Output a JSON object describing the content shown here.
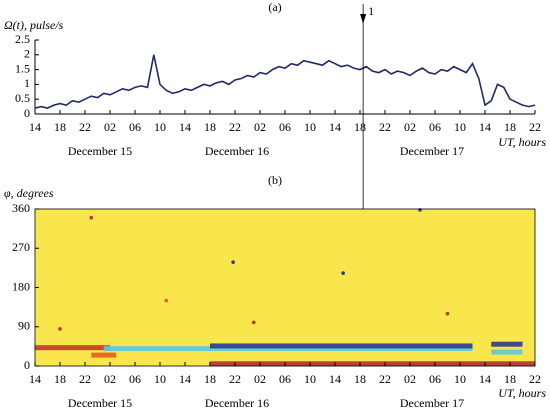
{
  "chart_data": [
    {
      "type": "line",
      "title": "(a)",
      "ylabel": "Ω(t), pulse/s",
      "xlabel": "UT, hours",
      "date_labels": [
        "December 15",
        "December 16",
        "December 17"
      ],
      "x": [
        0,
        1,
        2,
        3,
        4,
        5,
        6,
        7,
        8,
        9,
        10,
        11,
        12,
        13,
        14,
        15,
        16,
        17,
        18,
        19,
        20,
        21,
        22,
        23,
        24,
        25,
        26,
        27,
        28,
        29,
        30,
        31,
        32,
        33,
        34,
        35,
        36,
        37,
        38,
        39,
        40,
        41,
        42,
        43,
        44,
        45,
        46,
        47,
        48,
        49,
        50,
        51,
        52,
        53,
        54,
        55,
        56,
        57,
        58,
        59,
        60,
        61,
        62,
        63,
        64,
        65,
        66,
        67,
        68,
        69,
        70,
        71,
        72,
        73,
        74,
        75,
        76,
        77,
        78,
        79,
        80
      ],
      "series": [
        {
          "name": "Ω(t)",
          "color": "#1f2a6b",
          "values": [
            0.2,
            0.25,
            0.2,
            0.3,
            0.35,
            0.3,
            0.45,
            0.4,
            0.5,
            0.6,
            0.55,
            0.7,
            0.65,
            0.75,
            0.85,
            0.8,
            0.9,
            0.95,
            0.9,
            2.0,
            1.0,
            0.8,
            0.7,
            0.75,
            0.85,
            0.8,
            0.9,
            1.0,
            0.95,
            1.05,
            1.1,
            1.0,
            1.15,
            1.2,
            1.3,
            1.25,
            1.4,
            1.35,
            1.5,
            1.6,
            1.55,
            1.7,
            1.65,
            1.8,
            1.75,
            1.7,
            1.65,
            1.8,
            1.7,
            1.6,
            1.65,
            1.55,
            1.5,
            1.6,
            1.45,
            1.4,
            1.5,
            1.35,
            1.45,
            1.4,
            1.3,
            1.45,
            1.55,
            1.4,
            1.35,
            1.5,
            1.45,
            1.6,
            1.5,
            1.4,
            1.7,
            1.2,
            0.3,
            0.45,
            1.0,
            0.9,
            0.5,
            0.4,
            0.3,
            0.25,
            0.3
          ]
        }
      ],
      "xlim": [
        0,
        80
      ],
      "xticks": [
        {
          "value": 0,
          "label": "14"
        },
        {
          "value": 4,
          "label": "18"
        },
        {
          "value": 8,
          "label": "22"
        },
        {
          "value": 12,
          "label": "02"
        },
        {
          "value": 16,
          "label": "06"
        },
        {
          "value": 20,
          "label": "10"
        },
        {
          "value": 24,
          "label": "14"
        },
        {
          "value": 28,
          "label": "18"
        },
        {
          "value": 32,
          "label": "22"
        },
        {
          "value": 36,
          "label": "02"
        },
        {
          "value": 40,
          "label": "06"
        },
        {
          "value": 44,
          "label": "10"
        },
        {
          "value": 48,
          "label": "14"
        },
        {
          "value": 52,
          "label": "18"
        },
        {
          "value": 56,
          "label": "22"
        },
        {
          "value": 60,
          "label": "02"
        },
        {
          "value": 64,
          "label": "06"
        },
        {
          "value": 68,
          "label": "10"
        },
        {
          "value": 72,
          "label": "14"
        },
        {
          "value": 76,
          "label": "18"
        },
        {
          "value": 80,
          "label": "22"
        }
      ],
      "ylim": [
        0,
        2.5
      ],
      "yticks": [
        0,
        0.5,
        1,
        1.5,
        2,
        2.5
      ],
      "annotation": {
        "text": "1",
        "x": 52.5
      }
    },
    {
      "type": "heatmap",
      "title": "(b)",
      "ylabel": "φ, degrees",
      "xlabel": "UT, hours",
      "date_labels": [
        "December 15",
        "December 16",
        "December 17"
      ],
      "background": "#f8e64c",
      "xlim": [
        0,
        80
      ],
      "xticks": [
        {
          "value": 0,
          "label": "14"
        },
        {
          "value": 4,
          "label": "18"
        },
        {
          "value": 8,
          "label": "22"
        },
        {
          "value": 12,
          "label": "02"
        },
        {
          "value": 16,
          "label": "06"
        },
        {
          "value": 20,
          "label": "10"
        },
        {
          "value": 24,
          "label": "14"
        },
        {
          "value": 28,
          "label": "18"
        },
        {
          "value": 32,
          "label": "22"
        },
        {
          "value": 36,
          "label": "02"
        },
        {
          "value": 40,
          "label": "06"
        },
        {
          "value": 44,
          "label": "10"
        },
        {
          "value": 48,
          "label": "14"
        },
        {
          "value": 52,
          "label": "18"
        },
        {
          "value": 56,
          "label": "22"
        },
        {
          "value": 60,
          "label": "02"
        },
        {
          "value": 64,
          "label": "06"
        },
        {
          "value": 68,
          "label": "10"
        },
        {
          "value": 72,
          "label": "14"
        },
        {
          "value": 76,
          "label": "18"
        },
        {
          "value": 80,
          "label": "22"
        }
      ],
      "ylim": [
        0,
        360
      ],
      "yticks": [
        0,
        90,
        180,
        270,
        360
      ],
      "segments": [
        {
          "x": [
            0,
            12
          ],
          "y": 42,
          "color": "#c0392b"
        },
        {
          "x": [
            9,
            13
          ],
          "y": 25,
          "color": "#e06020"
        },
        {
          "x": [
            11,
            70
          ],
          "y": 40,
          "color": "#5bc8e0"
        },
        {
          "x": [
            28,
            70
          ],
          "y": 46,
          "color": "#2a3b8f"
        },
        {
          "x": [
            28,
            80
          ],
          "y": 5,
          "color": "#b03030"
        },
        {
          "x": [
            73,
            78
          ],
          "y": 50,
          "color": "#2a3b8f"
        },
        {
          "x": [
            73,
            78
          ],
          "y": 32,
          "color": "#5bc8e0"
        }
      ],
      "dots": [
        {
          "x": 9,
          "y": 340,
          "color": "#c03030"
        },
        {
          "x": 31.7,
          "y": 238,
          "color": "#2a3b8f"
        },
        {
          "x": 49.3,
          "y": 213,
          "color": "#2a3b8f"
        },
        {
          "x": 61.6,
          "y": 358,
          "color": "#2a3b8f"
        },
        {
          "x": 35,
          "y": 100,
          "color": "#c03030"
        },
        {
          "x": 4,
          "y": 85,
          "color": "#c03030"
        },
        {
          "x": 66,
          "y": 120,
          "color": "#c03030"
        },
        {
          "x": 21,
          "y": 150,
          "color": "#e06020"
        }
      ]
    }
  ]
}
